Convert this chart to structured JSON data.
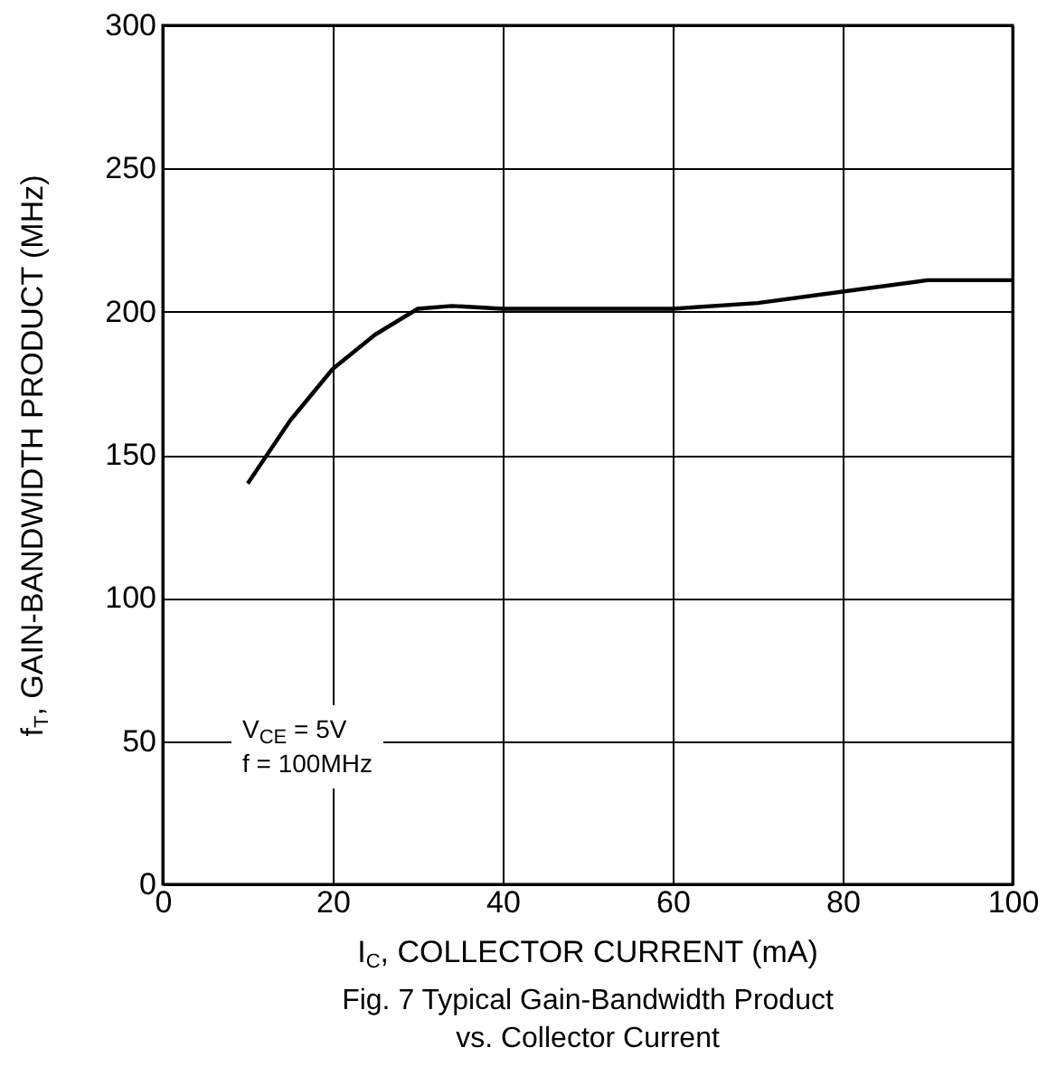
{
  "chart_data": {
    "type": "line",
    "xlabel": "I$_{C}$, COLLECTOR CURRENT (mA)",
    "ylabel": "f$_{T}$, GAIN-BANDWIDTH PRODUCT (MHz)",
    "annotations": [
      "V$_{CE}$ = 5V",
      "f = 100MHz",
      "Fig. 7  Typical Gain-Bandwidth Product",
      "vs. Collector Current"
    ],
    "x": [
      10,
      15,
      20,
      25,
      30,
      34,
      40,
      50,
      60,
      70,
      80,
      90,
      100
    ],
    "series": [
      {
        "color": "#000000",
        "values": [
          140,
          162,
          180,
          192,
          201,
          202,
          201,
          201,
          201,
          203,
          207,
          211,
          211
        ]
      }
    ],
    "xlim": [
      0,
      100
    ],
    "ylim": [
      0,
      300
    ],
    "xticks": [
      0,
      20,
      40,
      60,
      80,
      100
    ],
    "yticks": [
      0,
      50,
      100,
      150,
      200,
      250,
      300
    ],
    "grid": true
  }
}
